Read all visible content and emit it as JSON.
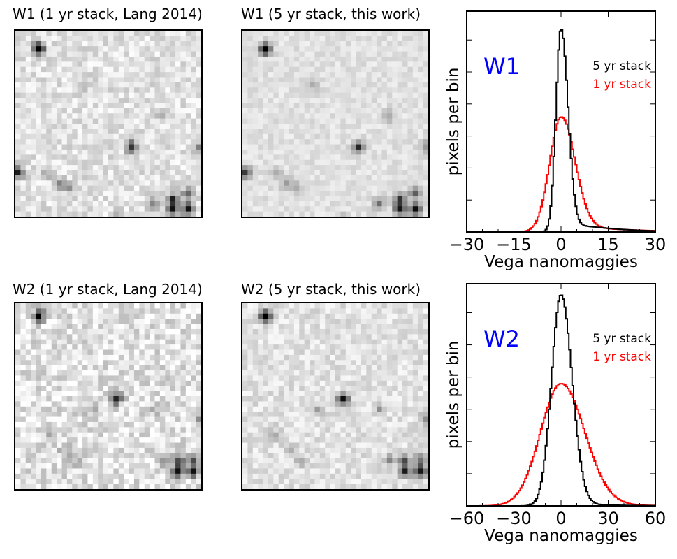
{
  "rows": [
    {
      "left_title": "W1 (1 yr stack, Lang 2014)",
      "mid_title": "W1 (5 yr stack, this work)"
    },
    {
      "left_title": "W2 (1 yr stack, Lang 2014)",
      "mid_title": "W2 (5 yr stack, this work)"
    }
  ],
  "colors": {
    "five_yr": "#000000",
    "one_yr": "#ff0000",
    "band_label": "#0000ff"
  },
  "chart_data": [
    {
      "type": "line",
      "band_label": "W1",
      "xlabel": "Vega nanomaggies",
      "ylabel": "pixels per bin",
      "xlim": [
        -30,
        30
      ],
      "xticks": [
        -30,
        -15,
        0,
        15,
        30
      ],
      "xtick_labels": [
        "−30",
        "−15",
        "0",
        "15",
        "30"
      ],
      "ylim": [
        0,
        1.0
      ],
      "series": [
        {
          "name": "5 yr stack",
          "peak": 0.92,
          "sigma_left": 1.6,
          "sigma_right": 2.2,
          "tail": 0.06,
          "tail_scale": 12
        },
        {
          "name": "1 yr stack",
          "peak": 0.52,
          "sigma_left": 3.6,
          "sigma_right": 4.4,
          "tail": 0.05,
          "tail_scale": 14
        }
      ]
    },
    {
      "type": "line",
      "band_label": "W2",
      "xlabel": "Vega nanomaggies",
      "ylabel": "pixels per bin",
      "xlim": [
        -60,
        60
      ],
      "xticks": [
        -60,
        -30,
        0,
        30,
        60
      ],
      "xtick_labels": [
        "−60",
        "−30",
        "0",
        "30",
        "60"
      ],
      "ylim": [
        0,
        1.0
      ],
      "series": [
        {
          "name": "5 yr stack",
          "peak": 0.95,
          "sigma_left": 6.0,
          "sigma_right": 7.0,
          "tail": 0.02,
          "tail_scale": 20
        },
        {
          "name": "1 yr stack",
          "peak": 0.55,
          "sigma_left": 13.0,
          "sigma_right": 15.0,
          "tail": 0.02,
          "tail_scale": 25
        }
      ]
    }
  ]
}
